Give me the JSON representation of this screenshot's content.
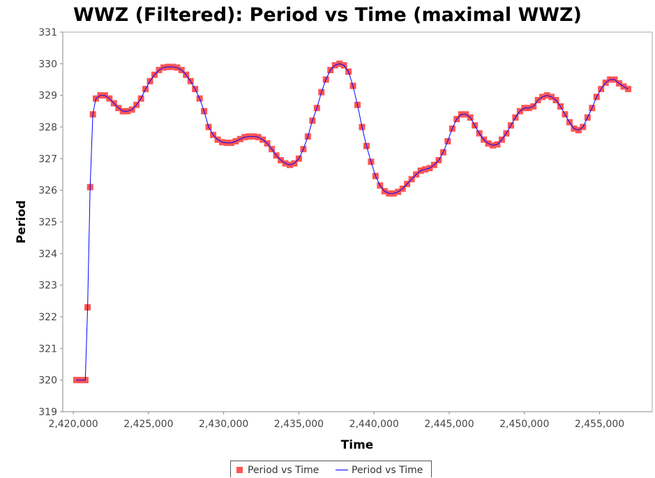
{
  "chart_data": {
    "type": "line",
    "title": "WWZ (Filtered): Period vs Time (maximal WWZ)",
    "xlabel": "Time",
    "ylabel": "Period",
    "xlim": [
      2419300,
      2458500
    ],
    "ylim": [
      319,
      331
    ],
    "x_ticks": [
      2420000,
      2425000,
      2430000,
      2435000,
      2440000,
      2445000,
      2450000,
      2455000
    ],
    "x_tick_labels": [
      "2,420,000",
      "2,425,000",
      "2,430,000",
      "2,435,000",
      "2,440,000",
      "2,445,000",
      "2,450,000",
      "2,455,000"
    ],
    "y_ticks": [
      319,
      320,
      321,
      322,
      323,
      324,
      325,
      326,
      327,
      328,
      329,
      330,
      331
    ],
    "y_tick_labels": [
      "319",
      "320",
      "321",
      "322",
      "323",
      "324",
      "325",
      "326",
      "327",
      "328",
      "329",
      "330",
      "331"
    ],
    "grid": false,
    "legend_position": "bottom-center",
    "series": [
      {
        "name": "Period vs Time",
        "kind": "markers",
        "color": "#ff5555",
        "points": [
          [
            2420200,
            320.0
          ],
          [
            2420500,
            320.0
          ],
          [
            2420800,
            320.0
          ],
          [
            2420950,
            322.3
          ],
          [
            2421120,
            326.1
          ],
          [
            2421300,
            328.4
          ],
          [
            2421500,
            328.9
          ],
          [
            2421800,
            329.0
          ],
          [
            2422100,
            329.0
          ],
          [
            2422400,
            328.9
          ],
          [
            2422700,
            328.75
          ],
          [
            2423000,
            328.6
          ],
          [
            2423300,
            328.5
          ],
          [
            2423600,
            328.5
          ],
          [
            2423900,
            328.55
          ],
          [
            2424200,
            328.7
          ],
          [
            2424500,
            328.9
          ],
          [
            2424800,
            329.2
          ],
          [
            2425100,
            329.45
          ],
          [
            2425400,
            329.65
          ],
          [
            2425700,
            329.8
          ],
          [
            2426000,
            329.88
          ],
          [
            2426300,
            329.9
          ],
          [
            2426600,
            329.9
          ],
          [
            2426900,
            329.88
          ],
          [
            2427200,
            329.8
          ],
          [
            2427500,
            329.65
          ],
          [
            2427800,
            329.45
          ],
          [
            2428100,
            329.2
          ],
          [
            2428400,
            328.9
          ],
          [
            2428700,
            328.5
          ],
          [
            2429000,
            328.0
          ],
          [
            2429300,
            327.75
          ],
          [
            2429600,
            327.6
          ],
          [
            2429900,
            327.52
          ],
          [
            2430200,
            327.5
          ],
          [
            2430500,
            327.5
          ],
          [
            2430800,
            327.55
          ],
          [
            2431100,
            327.62
          ],
          [
            2431400,
            327.68
          ],
          [
            2431700,
            327.7
          ],
          [
            2432000,
            327.7
          ],
          [
            2432300,
            327.68
          ],
          [
            2432600,
            327.6
          ],
          [
            2432900,
            327.48
          ],
          [
            2433200,
            327.3
          ],
          [
            2433500,
            327.1
          ],
          [
            2433800,
            326.95
          ],
          [
            2434100,
            326.85
          ],
          [
            2434400,
            326.8
          ],
          [
            2434700,
            326.85
          ],
          [
            2435000,
            327.0
          ],
          [
            2435300,
            327.3
          ],
          [
            2435600,
            327.7
          ],
          [
            2435900,
            328.2
          ],
          [
            2436200,
            328.6
          ],
          [
            2436500,
            329.1
          ],
          [
            2436800,
            329.5
          ],
          [
            2437100,
            329.8
          ],
          [
            2437400,
            329.95
          ],
          [
            2437700,
            330.0
          ],
          [
            2438000,
            329.95
          ],
          [
            2438300,
            329.75
          ],
          [
            2438600,
            329.3
          ],
          [
            2438900,
            328.7
          ],
          [
            2439200,
            328.0
          ],
          [
            2439500,
            327.4
          ],
          [
            2439800,
            326.9
          ],
          [
            2440100,
            326.45
          ],
          [
            2440400,
            326.15
          ],
          [
            2440700,
            325.97
          ],
          [
            2441000,
            325.9
          ],
          [
            2441300,
            325.9
          ],
          [
            2441600,
            325.95
          ],
          [
            2441900,
            326.05
          ],
          [
            2442200,
            326.2
          ],
          [
            2442500,
            326.35
          ],
          [
            2442800,
            326.5
          ],
          [
            2443100,
            326.62
          ],
          [
            2443400,
            326.66
          ],
          [
            2443700,
            326.7
          ],
          [
            2444000,
            326.8
          ],
          [
            2444300,
            326.95
          ],
          [
            2444600,
            327.2
          ],
          [
            2444900,
            327.55
          ],
          [
            2445200,
            327.95
          ],
          [
            2445500,
            328.25
          ],
          [
            2445800,
            328.4
          ],
          [
            2446100,
            328.4
          ],
          [
            2446400,
            328.3
          ],
          [
            2446700,
            328.05
          ],
          [
            2447000,
            327.8
          ],
          [
            2447300,
            327.6
          ],
          [
            2447600,
            327.48
          ],
          [
            2447900,
            327.42
          ],
          [
            2448200,
            327.45
          ],
          [
            2448500,
            327.6
          ],
          [
            2448800,
            327.8
          ],
          [
            2449100,
            328.05
          ],
          [
            2449400,
            328.3
          ],
          [
            2449700,
            328.5
          ],
          [
            2450000,
            328.6
          ],
          [
            2450300,
            328.6
          ],
          [
            2450600,
            328.65
          ],
          [
            2450900,
            328.85
          ],
          [
            2451200,
            328.95
          ],
          [
            2451500,
            329.0
          ],
          [
            2451800,
            328.95
          ],
          [
            2452100,
            328.85
          ],
          [
            2452400,
            328.65
          ],
          [
            2452700,
            328.4
          ],
          [
            2453000,
            328.15
          ],
          [
            2453300,
            327.95
          ],
          [
            2453600,
            327.9
          ],
          [
            2453900,
            328.0
          ],
          [
            2454200,
            328.3
          ],
          [
            2454500,
            328.6
          ],
          [
            2454800,
            328.95
          ],
          [
            2455100,
            329.2
          ],
          [
            2455400,
            329.4
          ],
          [
            2455700,
            329.5
          ],
          [
            2456000,
            329.5
          ],
          [
            2456300,
            329.38
          ],
          [
            2456600,
            329.28
          ],
          [
            2456900,
            329.2
          ]
        ]
      },
      {
        "name": "Period vs Time",
        "kind": "line",
        "color": "#0000ff",
        "same_points_as_series": 0
      }
    ]
  }
}
